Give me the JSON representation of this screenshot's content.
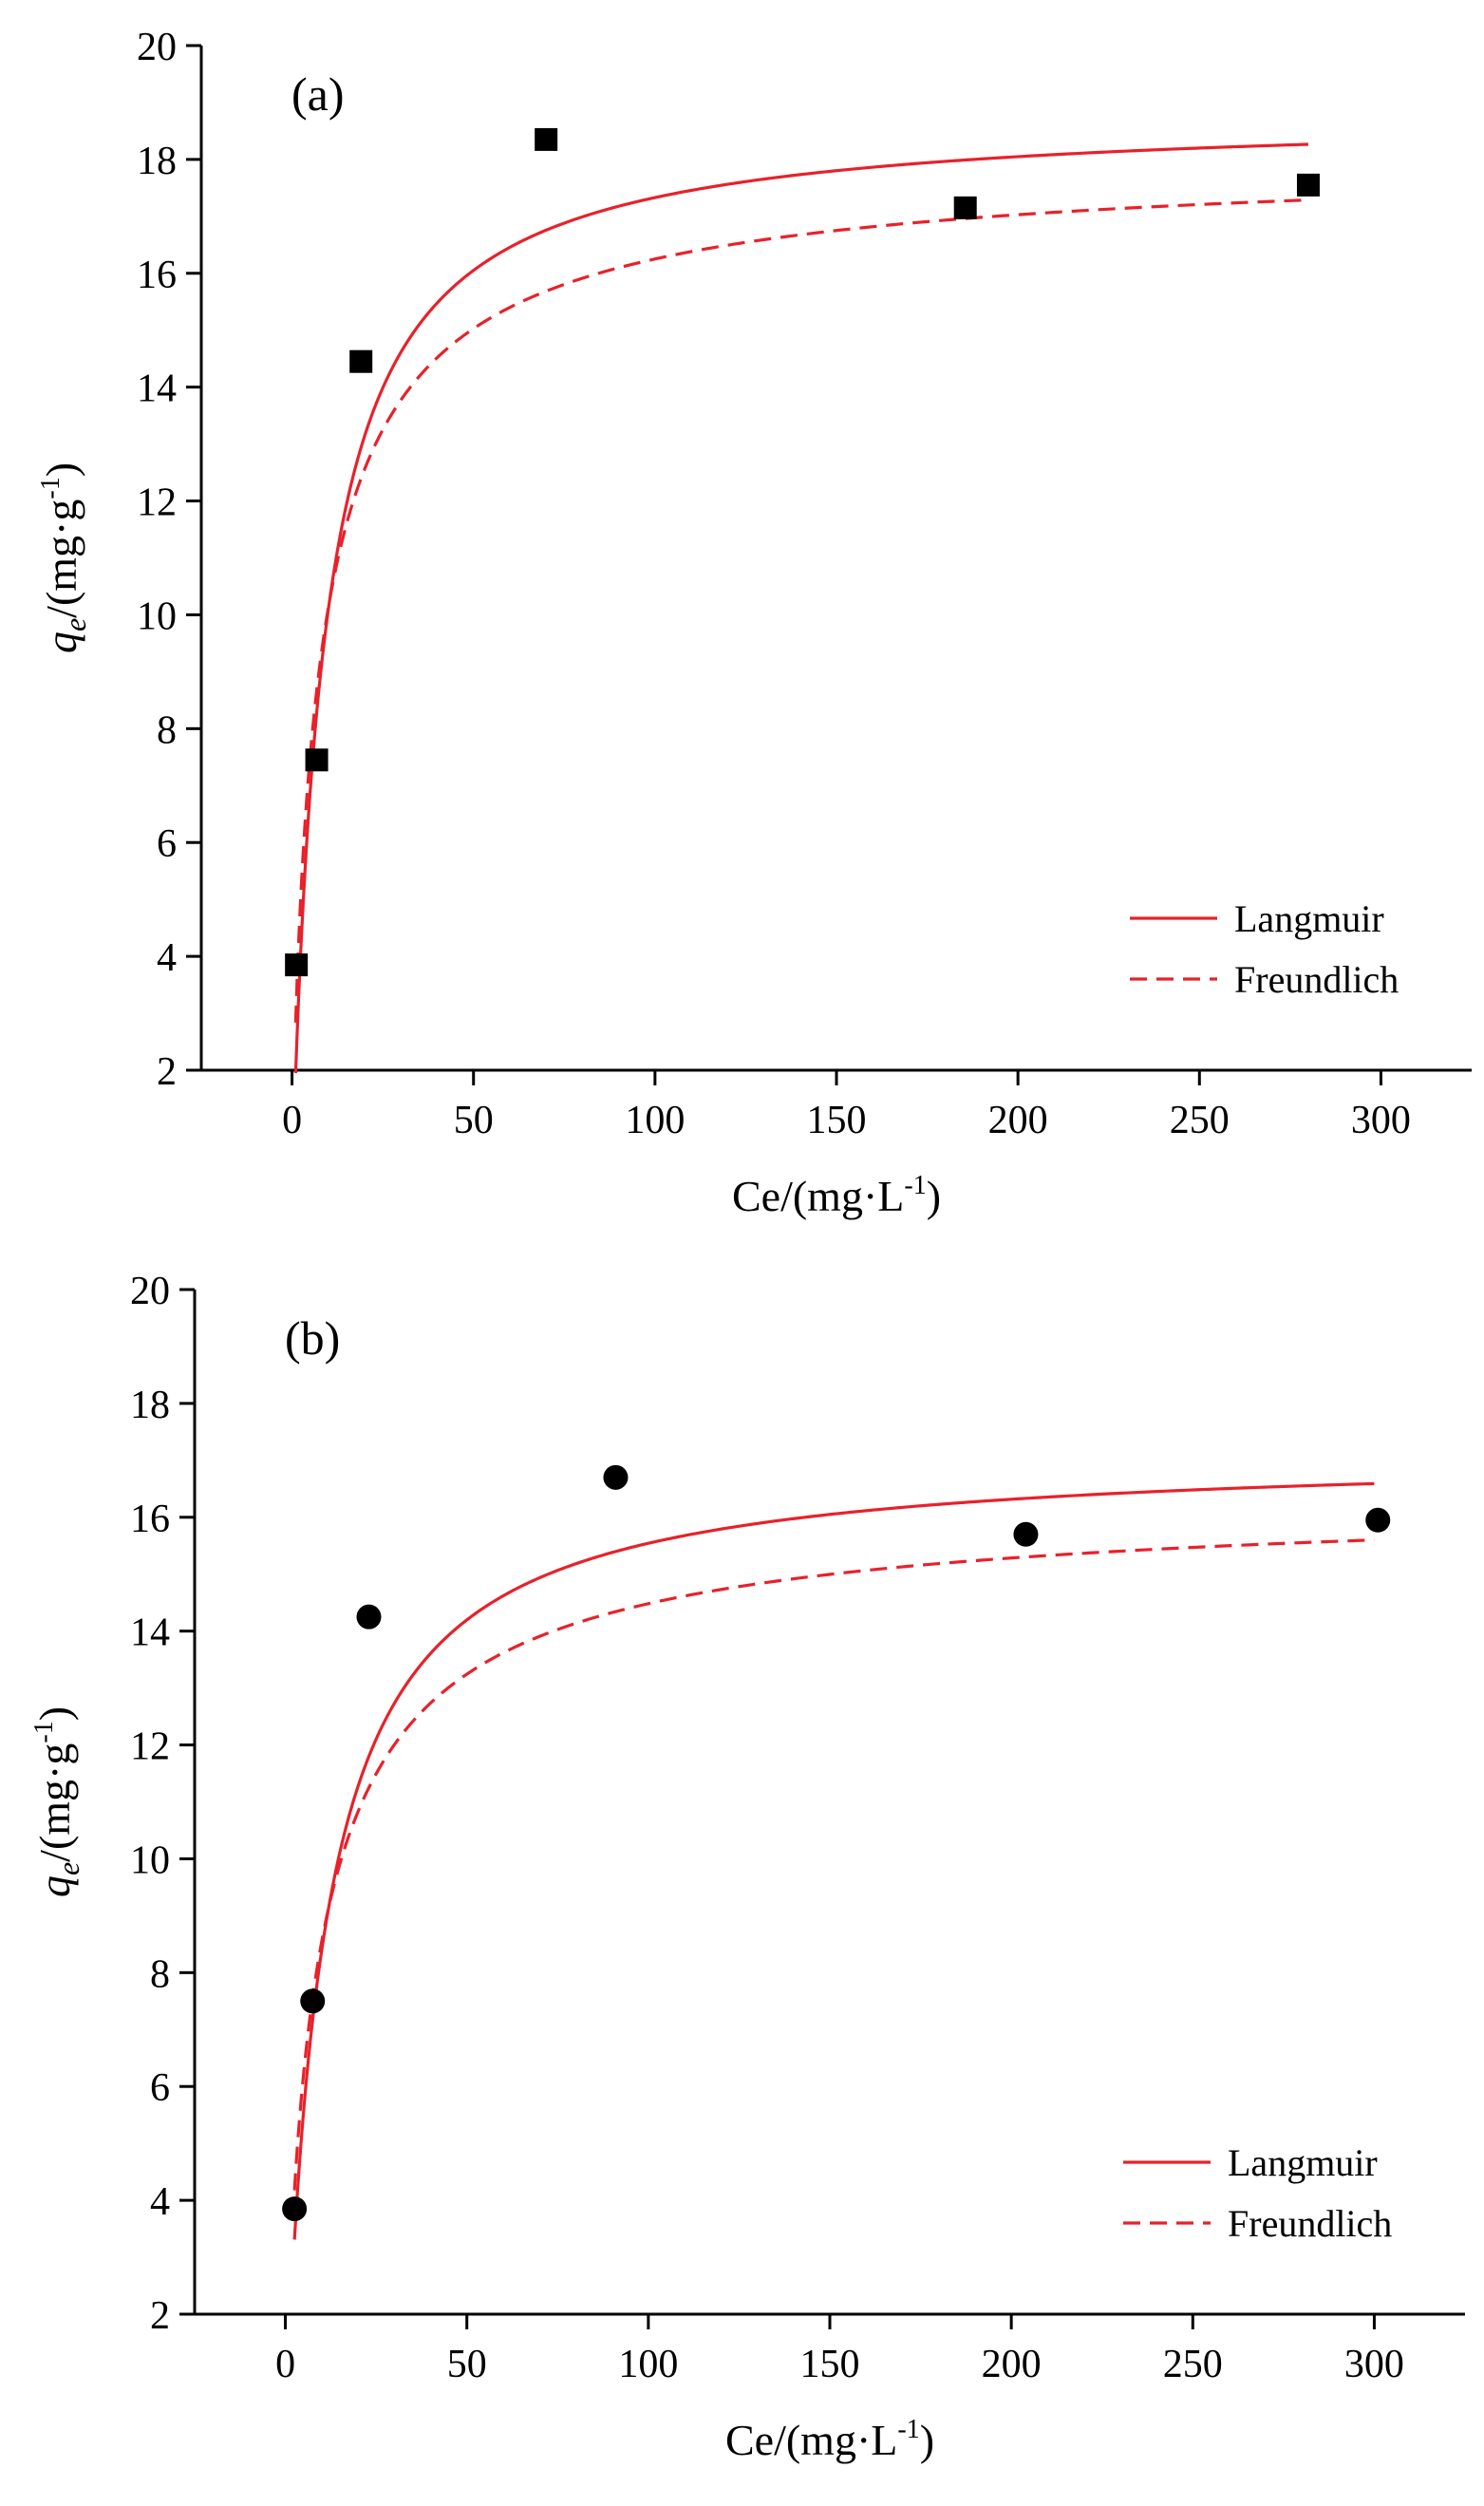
{
  "chart_data": [
    {
      "type": "scatter",
      "panel_label": "(a)",
      "xlabel": "Ce/(mg·L",
      "xlabel_sup": "-1",
      "xlabel_end": ")",
      "ylabel_main": "q",
      "ylabel_sub": "e",
      "ylabel_rest": "/(mg·g",
      "ylabel_sup": "-1",
      "ylabel_end": ")",
      "xlim": [
        -25,
        325
      ],
      "ylim": [
        2,
        20
      ],
      "xticks": [
        "0",
        "50",
        "100",
        "150",
        "200",
        "250",
        "300"
      ],
      "yticks": [
        "2",
        "4",
        "6",
        "8",
        "10",
        "12",
        "14",
        "16",
        "18",
        "20"
      ],
      "marker": "square",
      "points": [
        {
          "x": 1.2,
          "y": 3.85
        },
        {
          "x": 6.8,
          "y": 7.45
        },
        {
          "x": 19,
          "y": 14.45
        },
        {
          "x": 70,
          "y": 18.35
        },
        {
          "x": 185.5,
          "y": 17.15
        },
        {
          "x": 280,
          "y": 17.55
        }
      ],
      "fits": [
        {
          "name": "Langmuir",
          "style": "solid",
          "model": "langmuir",
          "qm": 18.83,
          "kl": 0.1155,
          "xrange": [
            1.0,
            280
          ]
        },
        {
          "name": "Freundlich",
          "style": "dashed",
          "model": "sips",
          "qm": 18.14,
          "ks": 0.1323,
          "n": 1.2,
          "xrange": [
            1.0,
            280
          ]
        }
      ],
      "legend_position": "bottom-right",
      "color": "#e8212a"
    },
    {
      "type": "scatter",
      "panel_label": "(b)",
      "xlabel": "Ce/(mg·L",
      "xlabel_sup": "-1",
      "xlabel_end": ")",
      "ylabel_main": "q",
      "ylabel_sub": "e",
      "ylabel_rest": "/(mg·g",
      "ylabel_sup": "-1",
      "ylabel_end": ")",
      "xlim": [
        -25,
        325
      ],
      "ylim": [
        2,
        20
      ],
      "xticks": [
        "0",
        "50",
        "100",
        "150",
        "200",
        "250",
        "300"
      ],
      "yticks": [
        "2",
        "4",
        "6",
        "8",
        "10",
        "12",
        "14",
        "16",
        "18",
        "20"
      ],
      "marker": "circle",
      "points": [
        {
          "x": 2.5,
          "y": 3.85
        },
        {
          "x": 7.5,
          "y": 7.5
        },
        {
          "x": 23,
          "y": 14.25
        },
        {
          "x": 91,
          "y": 16.7
        },
        {
          "x": 204,
          "y": 15.7
        },
        {
          "x": 301,
          "y": 15.95
        }
      ],
      "fits": [
        {
          "name": "Langmuir",
          "style": "solid",
          "model": "langmuir",
          "qm": 17.17,
          "kl": 0.0955,
          "xrange": [
            2.5,
            300
          ]
        },
        {
          "name": "Freundlich",
          "style": "dashed",
          "model": "sips",
          "qm": 16.45,
          "ks": 0.1097,
          "n": 1.2,
          "xrange": [
            2.5,
            300
          ]
        }
      ],
      "legend_position": "bottom-right",
      "color": "#e8212a"
    }
  ]
}
